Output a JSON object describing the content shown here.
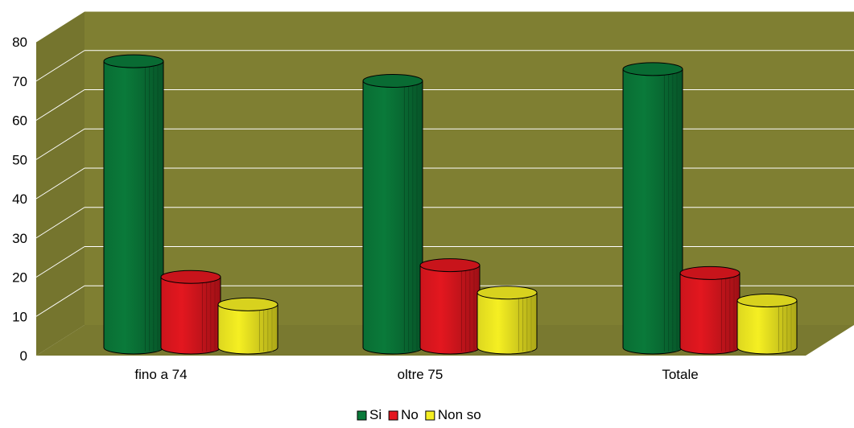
{
  "chart_data": {
    "type": "bar",
    "style": "3d-cylinder",
    "categories": [
      "fino a 74",
      "oltre 75",
      "Totale"
    ],
    "series": [
      {
        "name": "Si",
        "color": "#0a7a3a",
        "values": [
          73,
          68,
          71
        ]
      },
      {
        "name": "No",
        "color": "#e3171f",
        "values": [
          18,
          21,
          19
        ]
      },
      {
        "name": "Non so",
        "color": "#f5ef22",
        "values": [
          11,
          14,
          12
        ]
      }
    ],
    "ylim": [
      0,
      80
    ],
    "yticks": [
      "0",
      "10",
      "20",
      "30",
      "40",
      "50",
      "60",
      "70",
      "80"
    ],
    "grid": true,
    "wall_color": "#7f7f32",
    "legend": "bottom"
  }
}
